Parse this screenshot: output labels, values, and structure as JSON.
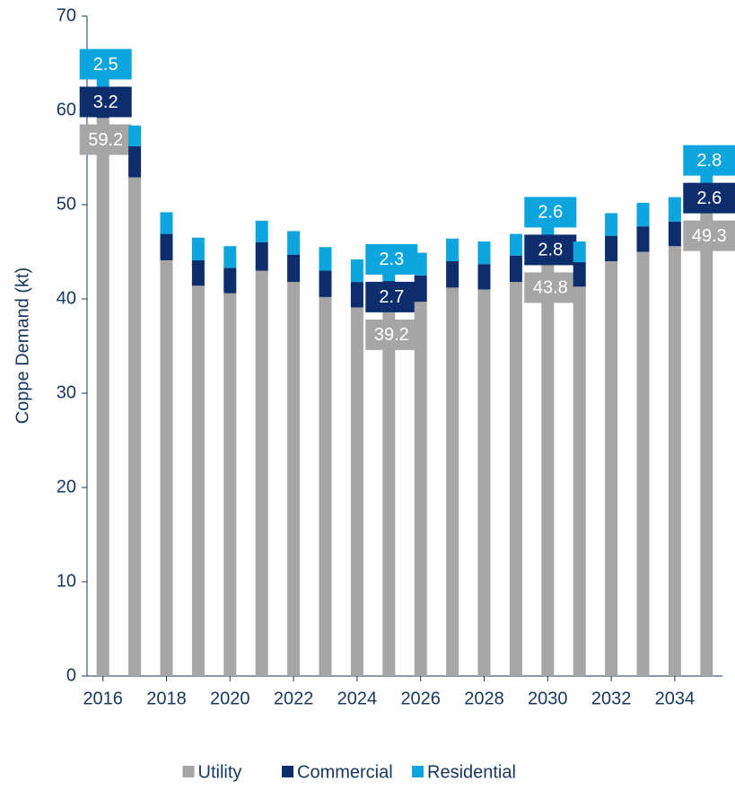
{
  "chart_data": {
    "type": "stacked_bar",
    "ylabel": "Coppe Demand (kt)",
    "x": [
      2016,
      2017,
      2018,
      2019,
      2020,
      2021,
      2022,
      2023,
      2024,
      2025,
      2026,
      2027,
      2028,
      2029,
      2030,
      2031,
      2032,
      2033,
      2034,
      2035
    ],
    "xlim": [
      2015.5,
      2035.5
    ],
    "xticks": [
      2016,
      2018,
      2020,
      2022,
      2024,
      2026,
      2028,
      2030,
      2032,
      2034
    ],
    "ylim": [
      0,
      70
    ],
    "yticks": [
      0,
      10,
      20,
      30,
      40,
      50,
      60,
      70
    ],
    "grid": false,
    "legend": "bottom",
    "series": [
      {
        "name": "Utility",
        "color": "#a6a6a6",
        "values": [
          59.2,
          52.9,
          44.1,
          41.4,
          40.6,
          43.0,
          41.8,
          40.2,
          39.1,
          39.2,
          39.7,
          41.2,
          41.0,
          41.8,
          43.8,
          41.3,
          44.0,
          45.0,
          45.6,
          49.3
        ],
        "value_labels": [
          59.2,
          null,
          null,
          null,
          null,
          null,
          null,
          null,
          null,
          39.2,
          null,
          null,
          null,
          null,
          43.8,
          null,
          null,
          null,
          null,
          49.3
        ]
      },
      {
        "name": "Commercial",
        "color": "#0d2d6c",
        "values": [
          3.2,
          3.3,
          2.8,
          2.7,
          2.7,
          3.0,
          2.9,
          2.8,
          2.7,
          2.7,
          2.8,
          2.8,
          2.7,
          2.8,
          2.8,
          2.6,
          2.7,
          2.7,
          2.6,
          2.6
        ],
        "value_labels": [
          3.2,
          null,
          null,
          null,
          null,
          null,
          null,
          null,
          null,
          2.7,
          null,
          null,
          null,
          null,
          2.8,
          null,
          null,
          null,
          null,
          2.6
        ]
      },
      {
        "name": "Residential",
        "color": "#0ea5df",
        "values": [
          2.5,
          2.2,
          2.3,
          2.4,
          2.3,
          2.3,
          2.5,
          2.5,
          2.4,
          2.3,
          2.4,
          2.4,
          2.4,
          2.3,
          2.6,
          2.2,
          2.4,
          2.5,
          2.6,
          2.8
        ],
        "value_labels": [
          2.5,
          null,
          null,
          null,
          null,
          null,
          null,
          null,
          null,
          2.3,
          null,
          null,
          null,
          null,
          2.6,
          null,
          null,
          null,
          null,
          2.8
        ]
      }
    ]
  }
}
